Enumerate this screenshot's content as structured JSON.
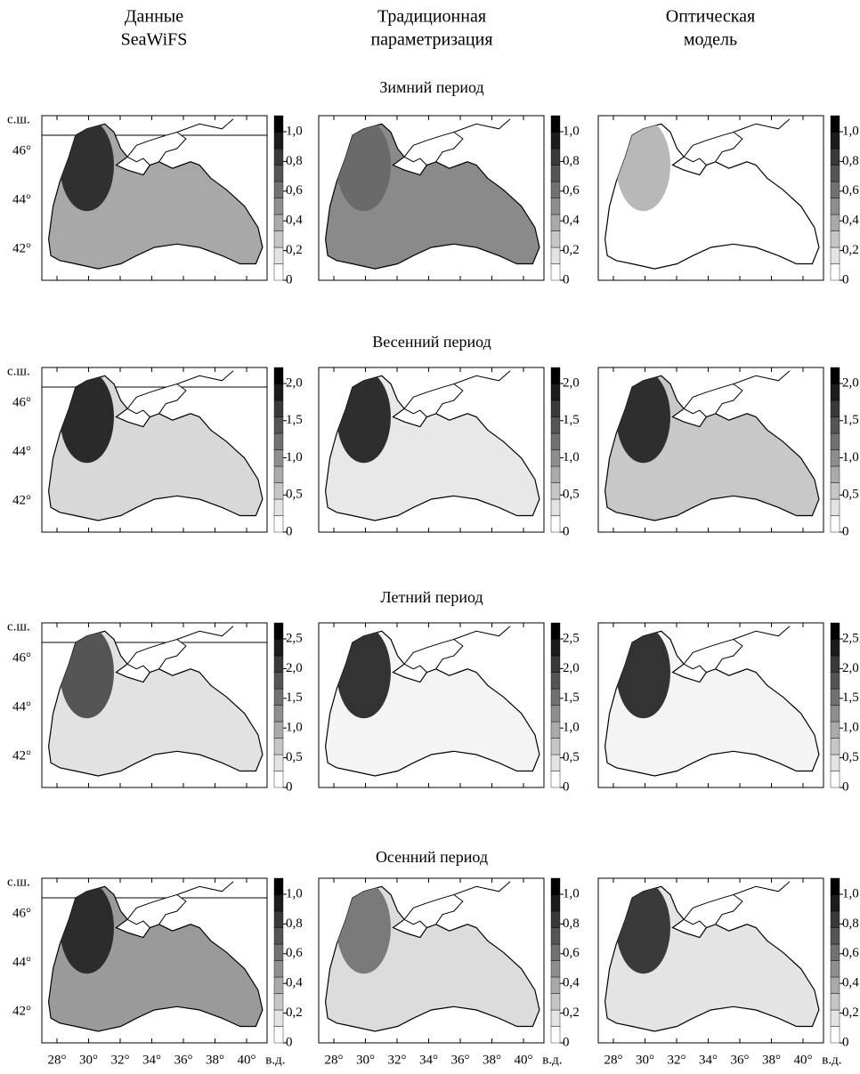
{
  "columns": [
    {
      "lines": [
        "Данные",
        "SeaWiFS"
      ]
    },
    {
      "lines": [
        "Традиционная",
        "параметризация"
      ]
    },
    {
      "lines": [
        "Оптическая",
        "модель"
      ]
    }
  ],
  "rows": [
    {
      "title": "Зимний период",
      "colorbar_ticks": [
        "0",
        "0,2",
        "0,4",
        "0,6",
        "0,8",
        "1,0"
      ]
    },
    {
      "title": "Весенний период",
      "colorbar_ticks": [
        "0",
        "0,5",
        "1,0",
        "1,5",
        "2,0"
      ]
    },
    {
      "title": "Летний период",
      "colorbar_ticks": [
        "0",
        "0,5",
        "1,0",
        "1,5",
        "2,0",
        "2,5"
      ]
    },
    {
      "title": "Осенний период",
      "colorbar_ticks": [
        "0",
        "0,2",
        "0,4",
        "0,6",
        "0,8",
        "1,0"
      ]
    }
  ],
  "axes": {
    "lat_unit": "с.ш.",
    "lat_ticks": [
      "46°",
      "44°",
      "42°"
    ],
    "lon_ticks": [
      "28°",
      "30°",
      "32°",
      "34°",
      "36°",
      "38°",
      "40°"
    ],
    "lon_unit": "в.д."
  }
}
